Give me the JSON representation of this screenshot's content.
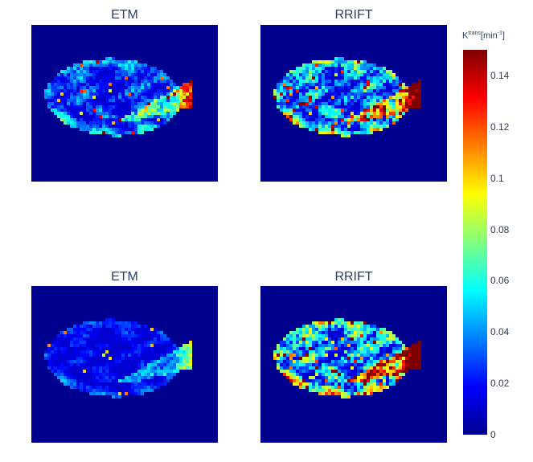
{
  "chart_data": {
    "type": "heatmap",
    "colormap": "jet",
    "panels": [
      {
        "title": "ETM",
        "intensity": 0.55,
        "texture_seed": 1
      },
      {
        "title": "RRIFT",
        "intensity": 0.85,
        "texture_seed": 2
      },
      {
        "title": "ETM",
        "intensity": 0.35,
        "texture_seed": 3
      },
      {
        "title": "RRIFT",
        "intensity": 1.0,
        "texture_seed": 4
      }
    ],
    "colorbar": {
      "title_main": "K",
      "title_sup": "trans",
      "title_unit": "[min",
      "title_unit_sup": "-1",
      "title_unit_close": "]",
      "range": [
        0,
        0.15
      ],
      "ticks": [
        "0",
        "0.02",
        "0.04",
        "0.06",
        "0.08",
        "0.1",
        "0.12",
        "0.14"
      ],
      "tick_values": [
        0,
        0.02,
        0.04,
        0.06,
        0.08,
        0.1,
        0.12,
        0.14
      ]
    }
  }
}
